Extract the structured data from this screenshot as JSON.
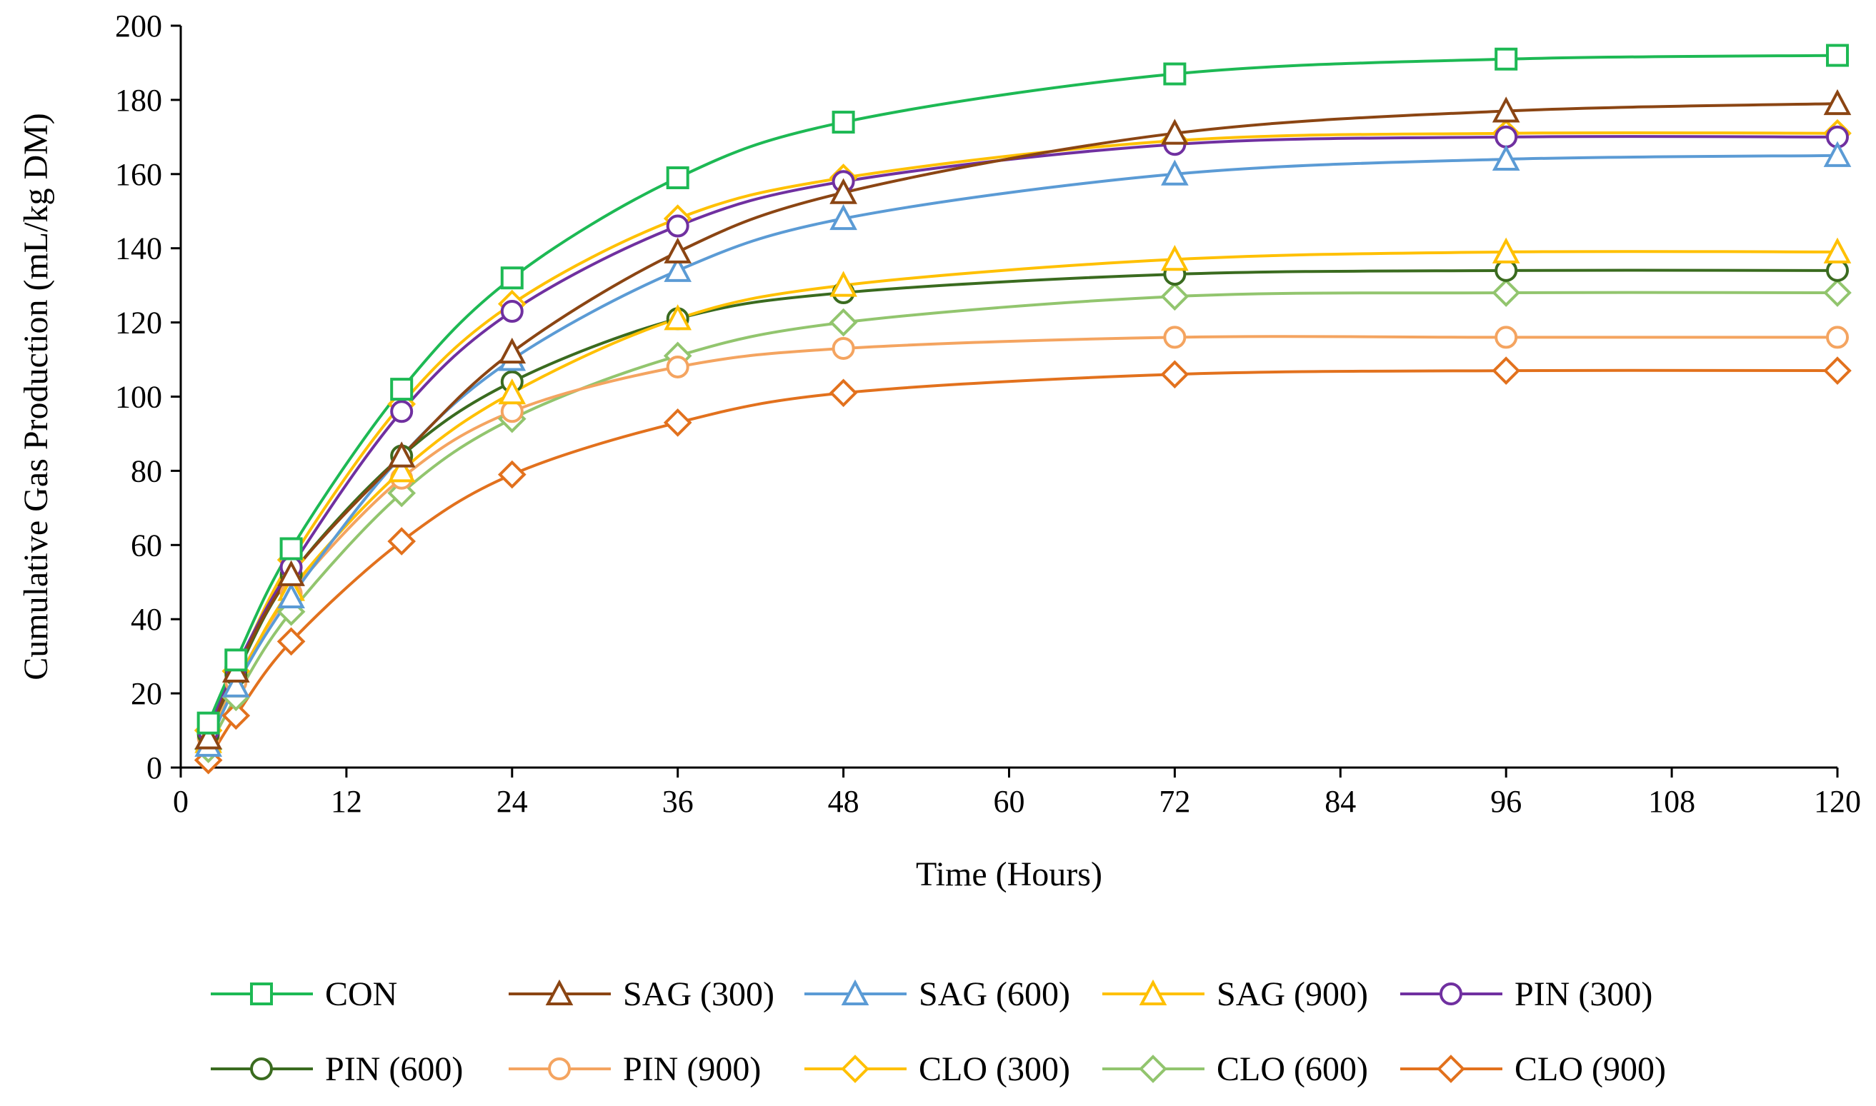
{
  "chart_data": {
    "type": "line",
    "title": "",
    "xlabel": "Time (Hours)",
    "ylabel": "Cumulative Gas Production (mL/kg DM)",
    "xlim": [
      0,
      120
    ],
    "ylim": [
      0,
      200
    ],
    "xticks": [
      0,
      12,
      24,
      36,
      48,
      60,
      72,
      84,
      96,
      108,
      120
    ],
    "yticks": [
      0,
      20,
      40,
      60,
      80,
      100,
      120,
      140,
      160,
      180,
      200
    ],
    "grid": false,
    "legend_position": "bottom",
    "x": [
      2,
      4,
      8,
      16,
      24,
      36,
      48,
      72,
      96,
      120
    ],
    "series": [
      {
        "name": "CON",
        "color": "#1db954",
        "marker": "square",
        "values": [
          12,
          29,
          59,
          102,
          132,
          159,
          174,
          187,
          191,
          192
        ]
      },
      {
        "name": "SAG (300)",
        "color": "#8b4513",
        "marker": "triangle",
        "values": [
          8,
          26,
          52,
          84,
          112,
          139,
          155,
          171,
          177,
          179
        ]
      },
      {
        "name": "SAG (600)",
        "color": "#5b9bd5",
        "marker": "triangle",
        "values": [
          6,
          22,
          46,
          84,
          110,
          134,
          148,
          160,
          164,
          165
        ]
      },
      {
        "name": "SAG (900)",
        "color": "#ffc000",
        "marker": "triangle",
        "values": [
          7,
          22,
          48,
          80,
          101,
          121,
          130,
          137,
          139,
          139
        ]
      },
      {
        "name": "PIN (300)",
        "color": "#7030a0",
        "marker": "circle",
        "values": [
          10,
          27,
          54,
          96,
          123,
          146,
          158,
          168,
          170,
          170
        ]
      },
      {
        "name": "PIN (600)",
        "color": "#3a6b1f",
        "marker": "circle",
        "values": [
          9,
          25,
          52,
          84,
          104,
          121,
          128,
          133,
          134,
          134
        ]
      },
      {
        "name": "PIN (900)",
        "color": "#f4a460",
        "marker": "circle",
        "values": [
          8,
          23,
          47,
          78,
          96,
          108,
          113,
          116,
          116,
          116
        ]
      },
      {
        "name": "CLO (300)",
        "color": "#ffc000",
        "marker": "diamond",
        "values": [
          10,
          26,
          56,
          98,
          125,
          148,
          159,
          169,
          171,
          171
        ]
      },
      {
        "name": "CLO (600)",
        "color": "#92c56e",
        "marker": "diamond",
        "values": [
          5,
          19,
          42,
          74,
          94,
          111,
          120,
          127,
          128,
          128
        ]
      },
      {
        "name": "CLO (900)",
        "color": "#e2711d",
        "marker": "diamond",
        "values": [
          2,
          14,
          34,
          61,
          79,
          93,
          101,
          106,
          107,
          107
        ]
      }
    ]
  }
}
